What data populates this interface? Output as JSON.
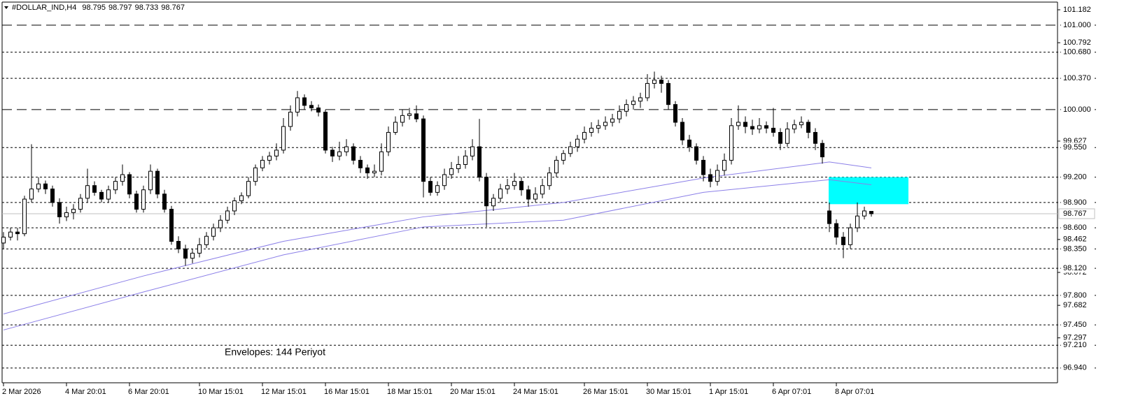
{
  "chart_data": {
    "type": "candlestick",
    "symbol": "#DOLLAR_IND,H4",
    "annotation": "Envelopes: 144 Periyot",
    "annotation_color": "#800080",
    "ylim": [
      96.765,
      101.273
    ],
    "yticks": [
      101.182,
      100.792,
      99.627,
      98.462,
      98.072,
      97.682,
      97.297
    ],
    "xticks": [
      {
        "value": 0,
        "label": "2 Mar 2026"
      },
      {
        "value": 9,
        "label": "4 Mar 20:01"
      },
      {
        "value": 18,
        "label": "6 Mar 20:01"
      },
      {
        "value": 28,
        "label": "10 Mar 15:01"
      },
      {
        "value": 37,
        "label": "12 Mar 15:01"
      },
      {
        "value": 46,
        "label": "16 Mar 15:01"
      },
      {
        "value": 55,
        "label": "18 Mar 15:01"
      },
      {
        "value": 64,
        "label": "20 Mar 15:01"
      },
      {
        "value": 73,
        "label": "24 Mar 15:01"
      },
      {
        "value": 83,
        "label": "26 Mar 15:01"
      },
      {
        "value": 92,
        "label": "30 Mar 15:01"
      },
      {
        "value": 101,
        "label": "1 Apr 15:01"
      },
      {
        "value": 110,
        "label": "6 Apr 07:01"
      },
      {
        "value": 119,
        "label": "8 Apr 07:01"
      }
    ],
    "up_color": "#ffffff",
    "down_color": "#000000",
    "candles": [
      [
        98.42,
        98.55,
        98.35,
        98.49
      ],
      [
        98.49,
        98.6,
        98.45,
        98.55
      ],
      [
        98.55,
        98.6,
        98.45,
        98.53
      ],
      [
        98.53,
        98.98,
        98.5,
        98.94
      ],
      [
        98.94,
        99.59,
        98.9,
        99.06
      ],
      [
        99.06,
        99.2,
        99.02,
        99.12
      ],
      [
        99.12,
        99.16,
        99.0,
        99.06
      ],
      [
        99.06,
        99.1,
        98.85,
        98.9
      ],
      [
        98.9,
        98.95,
        98.65,
        98.73
      ],
      [
        98.73,
        98.85,
        98.68,
        98.78
      ],
      [
        98.78,
        98.88,
        98.7,
        98.82
      ],
      [
        98.82,
        99.0,
        98.78,
        98.95
      ],
      [
        98.95,
        99.3,
        98.9,
        99.1
      ],
      [
        99.1,
        99.15,
        98.98,
        99.02
      ],
      [
        99.02,
        99.05,
        98.9,
        98.94
      ],
      [
        98.94,
        99.1,
        98.9,
        99.05
      ],
      [
        99.05,
        99.2,
        99.0,
        99.15
      ],
      [
        99.15,
        99.35,
        99.1,
        99.23
      ],
      [
        99.23,
        99.26,
        98.95,
        99.0
      ],
      [
        99.0,
        99.04,
        98.78,
        98.82
      ],
      [
        98.82,
        99.1,
        98.78,
        99.05
      ],
      [
        99.05,
        99.35,
        99.0,
        99.27
      ],
      [
        99.27,
        99.3,
        98.95,
        99.0
      ],
      [
        99.0,
        99.05,
        98.78,
        98.82
      ],
      [
        98.82,
        98.86,
        98.4,
        98.44
      ],
      [
        98.44,
        98.5,
        98.3,
        98.35
      ],
      [
        98.35,
        98.4,
        98.15,
        98.24
      ],
      [
        98.24,
        98.35,
        98.18,
        98.3
      ],
      [
        98.3,
        98.48,
        98.25,
        98.4
      ],
      [
        98.4,
        98.55,
        98.36,
        98.5
      ],
      [
        98.5,
        98.65,
        98.45,
        98.6
      ],
      [
        98.6,
        98.75,
        98.55,
        98.69
      ],
      [
        98.69,
        98.85,
        98.65,
        98.8
      ],
      [
        98.8,
        98.96,
        98.75,
        98.92
      ],
      [
        98.92,
        99.02,
        98.88,
        98.98
      ],
      [
        98.98,
        99.2,
        98.95,
        99.15
      ],
      [
        99.15,
        99.35,
        99.1,
        99.31
      ],
      [
        99.31,
        99.45,
        99.27,
        99.4
      ],
      [
        99.4,
        99.5,
        99.35,
        99.45
      ],
      [
        99.45,
        99.6,
        99.4,
        99.52
      ],
      [
        99.52,
        99.9,
        99.48,
        99.8
      ],
      [
        99.8,
        100.05,
        99.75,
        99.97
      ],
      [
        99.97,
        100.22,
        99.92,
        100.14
      ],
      [
        100.14,
        100.18,
        100.0,
        100.05
      ],
      [
        100.05,
        100.1,
        99.98,
        100.02
      ],
      [
        100.02,
        100.06,
        99.92,
        99.97
      ],
      [
        99.97,
        100.0,
        99.48,
        99.52
      ],
      [
        99.52,
        99.56,
        99.38,
        99.45
      ],
      [
        99.45,
        99.62,
        99.4,
        99.5
      ],
      [
        99.5,
        99.65,
        99.45,
        99.56
      ],
      [
        99.56,
        99.6,
        99.35,
        99.4
      ],
      [
        99.4,
        99.45,
        99.25,
        99.31
      ],
      [
        99.31,
        99.35,
        99.18,
        99.25
      ],
      [
        99.25,
        99.35,
        99.2,
        99.27
      ],
      [
        99.27,
        99.6,
        99.22,
        99.5
      ],
      [
        99.5,
        99.8,
        99.45,
        99.73
      ],
      [
        99.73,
        99.92,
        99.7,
        99.85
      ],
      [
        99.85,
        100.0,
        99.8,
        99.93
      ],
      [
        99.93,
        100.02,
        99.88,
        99.95
      ],
      [
        99.95,
        100.05,
        99.85,
        99.89
      ],
      [
        99.89,
        99.93,
        98.96,
        99.15
      ],
      [
        99.15,
        99.2,
        98.98,
        99.02
      ],
      [
        99.02,
        99.15,
        98.98,
        99.1
      ],
      [
        99.1,
        99.3,
        99.05,
        99.23
      ],
      [
        99.23,
        99.38,
        99.18,
        99.3
      ],
      [
        99.3,
        99.45,
        99.25,
        99.35
      ],
      [
        99.35,
        99.52,
        99.3,
        99.45
      ],
      [
        99.45,
        99.65,
        99.4,
        99.56
      ],
      [
        99.56,
        99.89,
        99.15,
        99.2
      ],
      [
        99.2,
        99.25,
        98.61,
        98.86
      ],
      [
        98.86,
        99.0,
        98.8,
        98.95
      ],
      [
        98.95,
        99.12,
        98.9,
        99.06
      ],
      [
        99.06,
        99.18,
        99.0,
        99.1
      ],
      [
        99.1,
        99.25,
        99.05,
        99.15
      ],
      [
        99.15,
        99.2,
        98.98,
        99.05
      ],
      [
        99.05,
        99.1,
        98.85,
        98.94
      ],
      [
        98.94,
        99.08,
        98.9,
        99.0
      ],
      [
        99.0,
        99.18,
        98.95,
        99.1
      ],
      [
        99.1,
        99.32,
        99.05,
        99.25
      ],
      [
        99.25,
        99.45,
        99.2,
        99.4
      ],
      [
        99.4,
        99.52,
        99.35,
        99.48
      ],
      [
        99.48,
        99.62,
        99.44,
        99.56
      ],
      [
        99.56,
        99.7,
        99.5,
        99.65
      ],
      [
        99.65,
        99.8,
        99.6,
        99.73
      ],
      [
        99.73,
        99.85,
        99.68,
        99.78
      ],
      [
        99.78,
        99.88,
        99.72,
        99.81
      ],
      [
        99.81,
        99.92,
        99.76,
        99.85
      ],
      [
        99.85,
        99.95,
        99.8,
        99.89
      ],
      [
        99.89,
        100.05,
        99.84,
        99.98
      ],
      [
        99.98,
        100.12,
        99.92,
        100.06
      ],
      [
        100.06,
        100.16,
        100.0,
        100.1
      ],
      [
        100.1,
        100.2,
        100.02,
        100.14
      ],
      [
        100.14,
        100.42,
        100.1,
        100.31
      ],
      [
        100.31,
        100.45,
        100.25,
        100.35
      ],
      [
        100.35,
        100.4,
        100.2,
        100.31
      ],
      [
        100.31,
        100.35,
        100.0,
        100.06
      ],
      [
        100.06,
        100.1,
        99.8,
        99.85
      ],
      [
        99.85,
        99.9,
        99.58,
        99.64
      ],
      [
        99.64,
        99.7,
        99.5,
        99.56
      ],
      [
        99.56,
        99.6,
        99.35,
        99.4
      ],
      [
        99.4,
        99.45,
        99.15,
        99.23
      ],
      [
        99.23,
        99.3,
        99.08,
        99.15
      ],
      [
        99.15,
        99.35,
        99.1,
        99.28
      ],
      [
        99.28,
        99.48,
        99.22,
        99.4
      ],
      [
        99.4,
        99.9,
        99.35,
        99.81
      ],
      [
        99.81,
        100.05,
        99.76,
        99.85
      ],
      [
        99.85,
        99.92,
        99.72,
        99.8
      ],
      [
        99.8,
        99.88,
        99.7,
        99.77
      ],
      [
        99.77,
        99.9,
        99.72,
        99.81
      ],
      [
        99.81,
        99.86,
        99.72,
        99.78
      ],
      [
        99.78,
        100.02,
        99.68,
        99.73
      ],
      [
        99.73,
        99.78,
        99.52,
        99.6
      ],
      [
        99.6,
        99.85,
        99.56,
        99.77
      ],
      [
        99.77,
        99.88,
        99.72,
        99.82
      ],
      [
        99.82,
        99.92,
        99.78,
        99.85
      ],
      [
        99.85,
        99.88,
        99.66,
        99.73
      ],
      [
        99.73,
        99.78,
        99.52,
        99.6
      ],
      [
        99.6,
        99.64,
        99.36,
        99.44
      ],
      [
        98.8,
        98.9,
        98.55,
        98.65
      ],
      [
        98.65,
        98.7,
        98.4,
        98.49
      ],
      [
        98.49,
        98.55,
        98.24,
        98.4
      ],
      [
        98.4,
        98.65,
        98.35,
        98.6
      ],
      [
        98.6,
        98.9,
        98.55,
        98.74
      ],
      [
        98.74,
        98.85,
        98.7,
        98.8
      ],
      [
        98.795,
        98.797,
        98.733,
        98.767
      ]
    ],
    "current_price": 98.767,
    "envelopes": [
      {
        "color": "#8b7fe8",
        "x": [
          0,
          20,
          40,
          60,
          80,
          100,
          118,
          124
        ],
        "values": [
          97.58,
          98.03,
          98.44,
          98.73,
          98.9,
          99.19,
          99.38,
          99.31
        ]
      },
      {
        "color": "#8b7fe8",
        "x": [
          0,
          20,
          40,
          60,
          80,
          100,
          118,
          124
        ],
        "values": [
          97.39,
          97.84,
          98.28,
          98.61,
          98.69,
          99.02,
          99.17,
          99.11
        ]
      }
    ],
    "zone": {
      "color": "#00ffff",
      "x": [
        117.9,
        129.3
      ],
      "y": [
        99.2,
        98.88
      ]
    },
    "levels": [
      {
        "value": 101,
        "label": "101.000",
        "style": "long-dash"
      },
      {
        "value": 100.68,
        "label": "100.680",
        "style": "dot"
      },
      {
        "value": 100.37,
        "label": "100.370",
        "style": "dot"
      },
      {
        "value": 100,
        "label": "100.000",
        "style": "long-dash"
      },
      {
        "value": 99.55,
        "label": "99.550",
        "style": "dot"
      },
      {
        "value": 99.2,
        "label": "99.200",
        "style": "dot"
      },
      {
        "value": 98.9,
        "label": "98.900",
        "style": "dot"
      },
      {
        "value": 98.6,
        "label": "98.600",
        "style": "dot"
      },
      {
        "value": 98.35,
        "label": "98.350",
        "style": "dot"
      },
      {
        "value": 98.12,
        "label": "98.120",
        "style": "dot"
      },
      {
        "value": 97.8,
        "label": "97.800",
        "style": "dot"
      },
      {
        "value": 97.45,
        "label": "97.450",
        "style": "dot"
      },
      {
        "value": 97.21,
        "label": "97.210",
        "style": "dot"
      },
      {
        "value": 96.94,
        "label": "96.940",
        "style": "dot"
      }
    ]
  }
}
